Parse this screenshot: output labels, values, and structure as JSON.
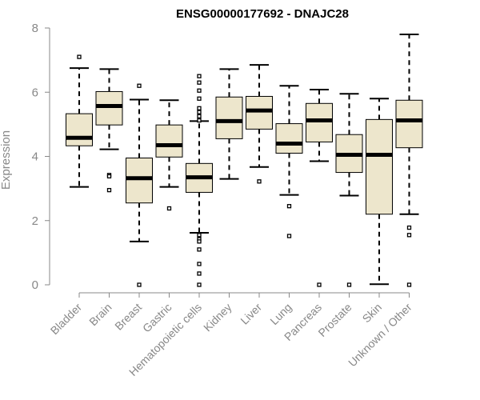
{
  "chart_data": {
    "type": "box",
    "title": "ENSG00000177692 - DNAJC28",
    "xlabel": "",
    "ylabel": "Expression",
    "ylim": [
      0,
      8
    ],
    "yticks": [
      "0",
      "2",
      "4",
      "6",
      "8"
    ],
    "box_fill_color": "#ede6cc",
    "axis_color": "#888888",
    "categories": [
      "Bladder",
      "Brain",
      "Breast",
      "Gastric",
      "Hematopoietic cells",
      "Kidney",
      "Liver",
      "Lung",
      "Pancreas",
      "Prostate",
      "Skin",
      "Unknown / Other"
    ],
    "boxes": [
      {
        "category": "Bladder",
        "whisker_low": 3.05,
        "q1": 4.33,
        "median": 4.58,
        "q3": 5.33,
        "whisker_high": 6.75,
        "outliers": [
          7.1
        ]
      },
      {
        "category": "Brain",
        "whisker_low": 4.22,
        "q1": 4.98,
        "median": 5.57,
        "q3": 6.02,
        "whisker_high": 6.72,
        "outliers": [
          3.42,
          3.38,
          2.95
        ]
      },
      {
        "category": "Breast",
        "whisker_low": 1.35,
        "q1": 2.55,
        "median": 3.32,
        "q3": 3.95,
        "whisker_high": 5.77,
        "outliers": [
          6.2,
          0.0
        ]
      },
      {
        "category": "Gastric",
        "whisker_low": 3.05,
        "q1": 3.98,
        "median": 4.35,
        "q3": 4.98,
        "whisker_high": 5.75,
        "outliers": [
          2.38
        ]
      },
      {
        "category": "Hematopoietic cells",
        "whisker_low": 1.62,
        "q1": 2.88,
        "median": 3.35,
        "q3": 3.78,
        "whisker_high": 5.1,
        "outliers": [
          6.5,
          6.3,
          6.05,
          5.8,
          5.5,
          5.38,
          5.25,
          5.12,
          1.55,
          1.42,
          1.35,
          1.1,
          0.65,
          0.35,
          0.0
        ]
      },
      {
        "category": "Kidney",
        "whisker_low": 3.3,
        "q1": 4.55,
        "median": 5.1,
        "q3": 5.85,
        "whisker_high": 6.72,
        "outliers": []
      },
      {
        "category": "Liver",
        "whisker_low": 3.67,
        "q1": 4.85,
        "median": 5.43,
        "q3": 5.87,
        "whisker_high": 6.85,
        "outliers": [
          3.22
        ]
      },
      {
        "category": "Lung",
        "whisker_low": 2.8,
        "q1": 4.1,
        "median": 4.4,
        "q3": 5.02,
        "whisker_high": 6.2,
        "outliers": [
          2.45,
          1.52
        ]
      },
      {
        "category": "Pancreas",
        "whisker_low": 3.85,
        "q1": 4.45,
        "median": 5.12,
        "q3": 5.65,
        "whisker_high": 6.08,
        "outliers": [
          0.0
        ]
      },
      {
        "category": "Prostate",
        "whisker_low": 2.78,
        "q1": 3.5,
        "median": 4.05,
        "q3": 4.68,
        "whisker_high": 5.95,
        "outliers": [
          0.0
        ]
      },
      {
        "category": "Skin",
        "whisker_low": 0.02,
        "q1": 2.2,
        "median": 4.05,
        "q3": 5.15,
        "whisker_high": 5.8,
        "outliers": []
      },
      {
        "category": "Unknown / Other",
        "whisker_low": 2.2,
        "q1": 4.27,
        "median": 5.12,
        "q3": 5.75,
        "whisker_high": 7.8,
        "outliers": [
          1.78,
          1.55,
          0.0
        ]
      }
    ]
  }
}
